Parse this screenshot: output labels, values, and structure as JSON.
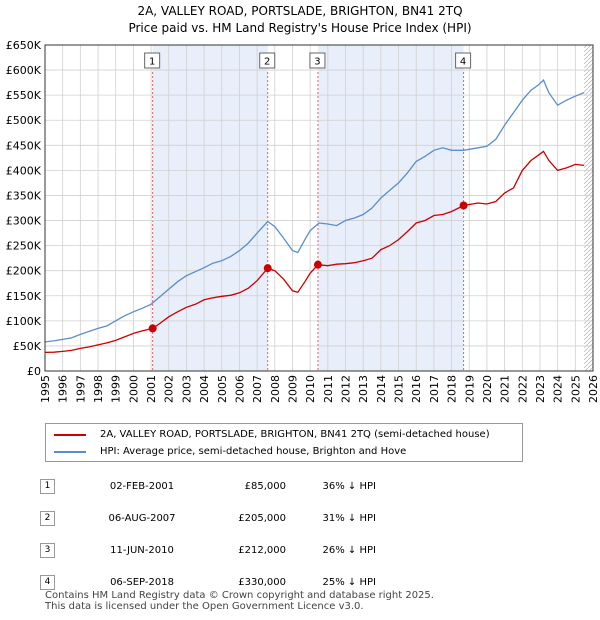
{
  "title_line1": "2A, VALLEY ROAD, PORTSLADE, BRIGHTON, BN41 2TQ",
  "title_line2": "Price paid vs. HM Land Registry's House Price Index (HPI)",
  "legend": {
    "property": "2A, VALLEY ROAD, PORTSLADE, BRIGHTON, BN41 2TQ (semi-detached house)",
    "hpi": "HPI: Average price, semi-detached house, Brighton and Hove"
  },
  "colors": {
    "property": "#cc0000",
    "hpi": "#5b8dc9",
    "shade": "#e8eefa",
    "marker_line": "#e06060",
    "grid": "#d0d0d0"
  },
  "sales": [
    {
      "num": "1",
      "date": "02-FEB-2001",
      "price": "£85,000",
      "hpi": "36% ↓ HPI"
    },
    {
      "num": "2",
      "date": "06-AUG-2007",
      "price": "£205,000",
      "hpi": "31% ↓ HPI"
    },
    {
      "num": "3",
      "date": "11-JUN-2010",
      "price": "£212,000",
      "hpi": "26% ↓ HPI"
    },
    {
      "num": "4",
      "date": "06-SEP-2018",
      "price": "£330,000",
      "hpi": "25% ↓ HPI"
    }
  ],
  "footer_line1": "Contains HM Land Registry data © Crown copyright and database right 2025.",
  "footer_line2": "This data is licensed under the Open Government Licence v3.0.",
  "chart_data": {
    "type": "line",
    "title": "2A, VALLEY ROAD, PORTSLADE, BRIGHTON, BN41 2TQ — Price paid vs. HM Land Registry's House Price Index (HPI)",
    "xlabel": "",
    "ylabel": "",
    "xlim": [
      1995,
      2026
    ],
    "ylim": [
      0,
      650000
    ],
    "x_ticks": [
      1995,
      1996,
      1997,
      1998,
      1999,
      2000,
      2001,
      2002,
      2003,
      2004,
      2005,
      2006,
      2007,
      2008,
      2009,
      2010,
      2011,
      2012,
      2013,
      2014,
      2015,
      2016,
      2017,
      2018,
      2019,
      2020,
      2021,
      2022,
      2023,
      2024,
      2025,
      2026
    ],
    "y_ticks": [
      {
        "value": 0,
        "label": "£0"
      },
      {
        "value": 50000,
        "label": "£50K"
      },
      {
        "value": 100000,
        "label": "£100K"
      },
      {
        "value": 150000,
        "label": "£150K"
      },
      {
        "value": 200000,
        "label": "£200K"
      },
      {
        "value": 250000,
        "label": "£250K"
      },
      {
        "value": 300000,
        "label": "£300K"
      },
      {
        "value": 350000,
        "label": "£350K"
      },
      {
        "value": 400000,
        "label": "£400K"
      },
      {
        "value": 450000,
        "label": "£450K"
      },
      {
        "value": 500000,
        "label": "£500K"
      },
      {
        "value": 550000,
        "label": "£550K"
      },
      {
        "value": 600000,
        "label": "£600K"
      },
      {
        "value": 650000,
        "label": "£650K"
      }
    ],
    "shaded_regions": [
      [
        2001.09,
        2007.6
      ],
      [
        2010.44,
        2018.68
      ]
    ],
    "hatched_after": 2025.5,
    "sale_markers": [
      {
        "label": "1",
        "x": 2001.09,
        "y": 85000
      },
      {
        "label": "2",
        "x": 2007.6,
        "y": 205000
      },
      {
        "label": "3",
        "x": 2010.44,
        "y": 212000
      },
      {
        "label": "4",
        "x": 2018.68,
        "y": 330000
      }
    ],
    "series": [
      {
        "name": "2A, VALLEY ROAD, PORTSLADE, BRIGHTON, BN41 2TQ (semi-detached house)",
        "x": [
          1995,
          1995.5,
          1996,
          1996.5,
          1997,
          1997.5,
          1998,
          1998.5,
          1999,
          1999.5,
          2000,
          2000.5,
          2001.09,
          2001.5,
          2002,
          2002.5,
          2003,
          2003.5,
          2004,
          2004.5,
          2005,
          2005.5,
          2006,
          2006.5,
          2007,
          2007.6,
          2008,
          2008.5,
          2009,
          2009.3,
          2009.7,
          2010,
          2010.44,
          2011,
          2011.5,
          2012,
          2012.5,
          2013,
          2013.5,
          2014,
          2014.5,
          2015,
          2015.5,
          2016,
          2016.5,
          2017,
          2017.5,
          2018,
          2018.68,
          2019,
          2019.5,
          2020,
          2020.5,
          2021,
          2021.5,
          2022,
          2022.5,
          2022.9,
          2023.2,
          2023.5,
          2024,
          2024.5,
          2025,
          2025.5
        ],
        "values": [
          37000,
          37500,
          39000,
          41000,
          45000,
          48000,
          52000,
          56000,
          61000,
          68000,
          75000,
          80000,
          85000,
          95000,
          108000,
          118000,
          127000,
          133000,
          142000,
          146000,
          149000,
          151000,
          156000,
          165000,
          180000,
          205000,
          200000,
          183000,
          160000,
          157000,
          178000,
          195000,
          212000,
          210000,
          213000,
          214000,
          216000,
          220000,
          225000,
          242000,
          250000,
          262000,
          278000,
          295000,
          300000,
          310000,
          312000,
          318000,
          330000,
          332000,
          335000,
          333000,
          338000,
          355000,
          365000,
          400000,
          420000,
          430000,
          438000,
          420000,
          400000,
          405000,
          412000,
          410000
        ]
      },
      {
        "name": "HPI: Average price, semi-detached house, Brighton and Hove",
        "x": [
          1995,
          1995.5,
          1996,
          1996.5,
          1997,
          1997.5,
          1998,
          1998.5,
          1999,
          1999.5,
          2000,
          2000.5,
          2001,
          2001.5,
          2002,
          2002.5,
          2003,
          2003.5,
          2004,
          2004.5,
          2005,
          2005.5,
          2006,
          2006.5,
          2007,
          2007.6,
          2008,
          2008.5,
          2009,
          2009.3,
          2009.7,
          2010,
          2010.5,
          2011,
          2011.5,
          2012,
          2012.5,
          2013,
          2013.5,
          2014,
          2014.5,
          2015,
          2015.5,
          2016,
          2016.5,
          2017,
          2017.5,
          2018,
          2018.68,
          2019,
          2019.5,
          2020,
          2020.5,
          2021,
          2021.5,
          2022,
          2022.5,
          2022.9,
          2023.2,
          2023.5,
          2024,
          2024.5,
          2025,
          2025.5
        ],
        "values": [
          58000,
          60000,
          63000,
          66000,
          73000,
          79000,
          85000,
          90000,
          100000,
          110000,
          118000,
          125000,
          133000,
          148000,
          163000,
          178000,
          190000,
          198000,
          206000,
          215000,
          220000,
          228000,
          240000,
          255000,
          275000,
          298000,
          288000,
          265000,
          240000,
          236000,
          262000,
          280000,
          295000,
          293000,
          290000,
          300000,
          305000,
          312000,
          325000,
          345000,
          360000,
          375000,
          395000,
          418000,
          428000,
          440000,
          445000,
          440000,
          440000,
          442000,
          445000,
          448000,
          462000,
          490000,
          515000,
          540000,
          560000,
          570000,
          580000,
          555000,
          530000,
          540000,
          548000,
          555000
        ]
      }
    ]
  }
}
